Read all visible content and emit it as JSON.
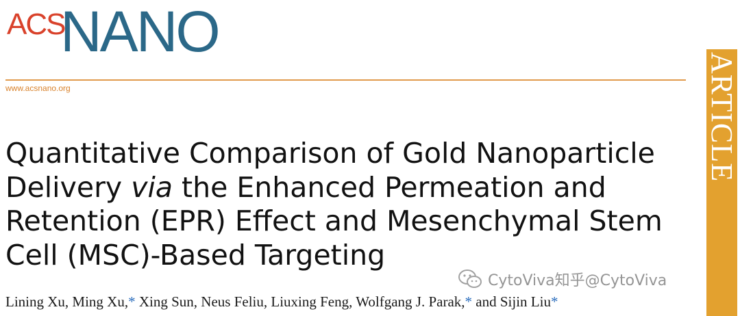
{
  "journal": {
    "logo_prefix": "ACS",
    "logo_main": "NANO",
    "website": "www.acsnano.org",
    "section_label": "ARTICLE"
  },
  "paper": {
    "title_part1": "Quantitative Comparison of Gold Nanoparticle Delivery ",
    "title_italic": "via",
    "title_part2": " the Enhanced Permeation and Retention (EPR) Effect and Mesenchymal Stem Cell (MSC)-Based Targeting",
    "authors": [
      {
        "name": "Lining Xu",
        "corresponding": false,
        "sep": ", "
      },
      {
        "name": "Ming Xu",
        "corresponding": true,
        "sep": " "
      },
      {
        "name": "Xing Sun",
        "corresponding": false,
        "sep": ", "
      },
      {
        "name": "Neus Feliu",
        "corresponding": false,
        "sep": ", "
      },
      {
        "name": "Liuxing Feng",
        "corresponding": false,
        "sep": ", "
      },
      {
        "name": "Wolfgang J. Parak",
        "corresponding": true,
        "sep": " and "
      },
      {
        "name": "Sijin Liu",
        "corresponding": true,
        "sep": ""
      }
    ],
    "corresponding_mark": "*"
  },
  "watermark": {
    "text": "CytoViva知乎@CytoViva",
    "icon": "wechat-icon"
  },
  "colors": {
    "acs_red": "#d9422b",
    "nano_blue": "#2b6888",
    "rule_orange": "#e19a4c",
    "article_band": "#e3a12f",
    "star_blue": "#2c6ebd"
  }
}
